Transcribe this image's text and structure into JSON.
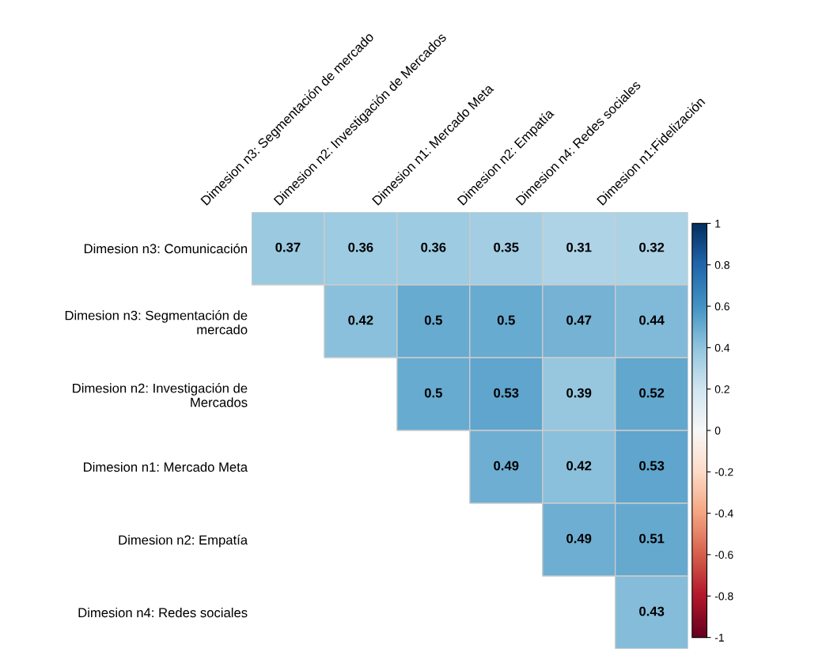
{
  "chart_data": {
    "type": "heatmap",
    "categories": [
      "Dimesion n3: Segmentación de\nmercado",
      "Dimesion n2: Investigación de\nMercados",
      "Dimesion n1: Mercado Meta",
      "Dimesion n2: Empatía",
      "Dimesion n4: Redes sociales",
      "Dimesion n1:Fidelización"
    ],
    "y_categories": [
      "Dimesion n3: Comunicación",
      "Dimesion n3: Segmentación de\nmercado",
      "Dimesion n2: Investigación de\nMercados",
      "Dimesion n1: Mercado Meta",
      "Dimesion n2: Empatía",
      "Dimesion n4: Redes sociales"
    ],
    "cells": [
      [
        0.37,
        0.36,
        0.36,
        0.35,
        0.31,
        0.32
      ],
      [
        null,
        0.42,
        0.5,
        0.5,
        0.47,
        0.44
      ],
      [
        null,
        null,
        0.5,
        0.53,
        0.39,
        0.52
      ],
      [
        null,
        null,
        null,
        0.49,
        0.42,
        0.53
      ],
      [
        null,
        null,
        null,
        null,
        0.49,
        0.51
      ],
      [
        null,
        null,
        null,
        null,
        null,
        0.43
      ]
    ],
    "data_labels": true,
    "clim": [
      -1,
      1
    ],
    "cticks": [
      -1,
      -0.8,
      -0.6,
      -0.4,
      -0.2,
      0,
      0.2,
      0.4,
      0.6,
      0.8,
      1
    ]
  }
}
